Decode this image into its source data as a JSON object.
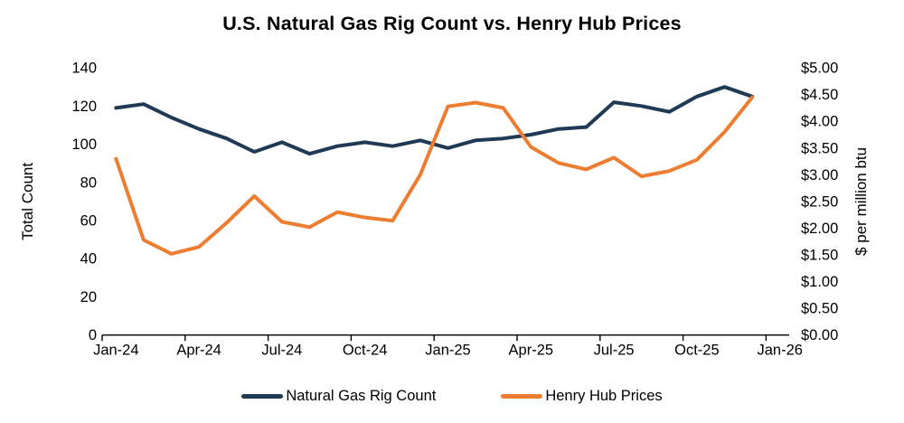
{
  "title": "U.S. Natural Gas Rig Count vs. Henry Hub Prices",
  "colors": {
    "rig_count": "#1F3A54",
    "henry_hub": "#ED7D31",
    "axis": "#000000"
  },
  "chart_data": {
    "type": "line",
    "title": "U.S. Natural Gas Rig Count vs. Henry Hub Prices",
    "categories": [
      "Jan-24",
      "Feb-24",
      "Mar-24",
      "Apr-24",
      "May-24",
      "Jun-24",
      "Jul-24",
      "Aug-24",
      "Sep-24",
      "Oct-24",
      "Nov-24",
      "Dec-24",
      "Jan-25",
      "Feb-25",
      "Mar-25",
      "Apr-25",
      "May-25",
      "Jun-25",
      "Jul-25",
      "Aug-25",
      "Sep-25",
      "Oct-25",
      "Nov-25",
      "Dec-25"
    ],
    "x_tick_labels": [
      "Jan-24",
      "Apr-24",
      "Jul-24",
      "Oct-24",
      "Jan-25",
      "Apr-25",
      "Jul-25",
      "Oct-25",
      "Jan-26"
    ],
    "left_axis": {
      "label": "Total Count",
      "min": 0,
      "max": 140,
      "step": 20,
      "tick_labels": [
        "0",
        "20",
        "40",
        "60",
        "80",
        "100",
        "120",
        "140"
      ]
    },
    "right_axis": {
      "label": "$ per million btu",
      "min": 0,
      "max": 5,
      "step": 0.5,
      "tick_labels": [
        "$0.00",
        "$0.50",
        "$1.00",
        "$1.50",
        "$2.00",
        "$2.50",
        "$3.00",
        "$3.50",
        "$4.00",
        "$4.50",
        "$5.00"
      ]
    },
    "grid": false,
    "legend_position": "bottom",
    "series": [
      {
        "name": "Natural Gas Rig Count",
        "axis": "left",
        "color": "#1F3A54",
        "values": [
          119,
          121,
          114,
          108,
          103,
          96,
          101,
          95,
          99,
          101,
          99,
          102,
          98,
          102,
          103,
          105,
          108,
          109,
          122,
          120,
          117,
          125,
          130,
          125
        ]
      },
      {
        "name": "Henry Hub Prices",
        "axis": "right",
        "color": "#ED7D31",
        "values": [
          3.3,
          1.78,
          1.52,
          1.65,
          2.1,
          2.6,
          2.12,
          2.02,
          2.3,
          2.2,
          2.14,
          3.0,
          4.28,
          4.35,
          4.25,
          3.52,
          3.22,
          3.1,
          3.32,
          2.97,
          3.07,
          3.28,
          3.8,
          4.45
        ]
      }
    ]
  }
}
